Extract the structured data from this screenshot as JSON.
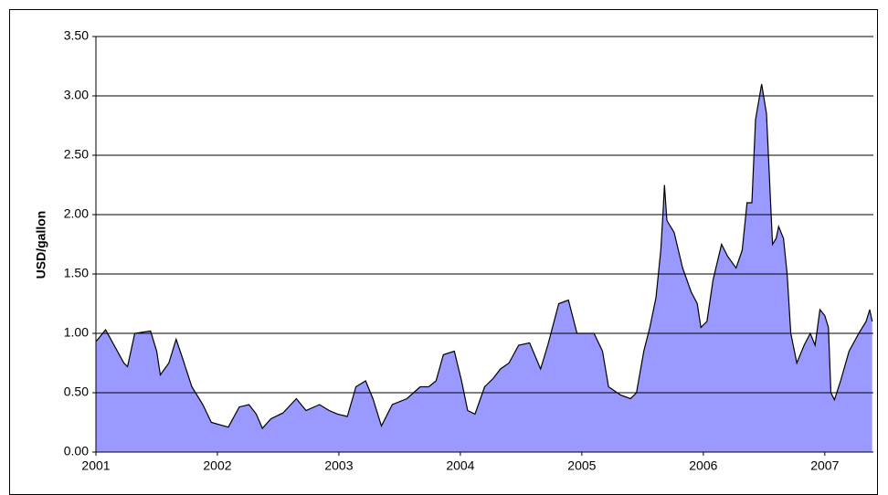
{
  "chart_data": {
    "type": "area",
    "y_label": "USD/gallon",
    "color": "#9999ff",
    "line_color": "#000000",
    "grid": true,
    "x": [
      2001.0,
      2001.08,
      2001.23,
      2001.26,
      2001.32,
      2001.45,
      2001.5,
      2001.53,
      2001.6,
      2001.66,
      2001.71,
      2001.79,
      2001.88,
      2001.95,
      2002.09,
      2002.18,
      2002.26,
      2002.32,
      2002.37,
      2002.44,
      2002.54,
      2002.65,
      2002.73,
      2002.84,
      2002.92,
      2002.99,
      2003.07,
      2003.14,
      2003.22,
      2003.28,
      2003.35,
      2003.44,
      2003.56,
      2003.67,
      2003.74,
      2003.8,
      2003.86,
      2003.95,
      2004.01,
      2004.06,
      2004.12,
      2004.2,
      2004.27,
      2004.33,
      2004.4,
      2004.48,
      2004.57,
      2004.66,
      2004.72,
      2004.81,
      2004.89,
      2004.96,
      2005.0,
      2005.1,
      2005.17,
      2005.22,
      2005.32,
      2005.4,
      2005.45,
      2005.51,
      2005.56,
      2005.61,
      2005.65,
      2005.67,
      2005.68,
      2005.7,
      2005.76,
      2005.83,
      2005.9,
      2005.95,
      2005.98,
      2006.03,
      2006.08,
      2006.15,
      2006.2,
      2006.27,
      2006.32,
      2006.36,
      2006.4,
      2006.43,
      2006.48,
      2006.52,
      2006.57,
      2006.6,
      2006.62,
      2006.66,
      2006.69,
      2006.72,
      2006.77,
      2006.83,
      2006.88,
      2006.92,
      2006.96,
      2007.0,
      2007.03,
      2007.05,
      2007.08,
      2007.13,
      2007.2,
      2007.28,
      2007.34,
      2007.37,
      2007.39
    ],
    "values": [
      0.93,
      1.03,
      0.75,
      0.72,
      1.0,
      1.02,
      0.85,
      0.65,
      0.75,
      0.95,
      0.8,
      0.55,
      0.4,
      0.25,
      0.21,
      0.38,
      0.4,
      0.32,
      0.2,
      0.28,
      0.33,
      0.45,
      0.35,
      0.4,
      0.35,
      0.32,
      0.3,
      0.55,
      0.6,
      0.45,
      0.22,
      0.4,
      0.45,
      0.55,
      0.55,
      0.6,
      0.82,
      0.85,
      0.6,
      0.35,
      0.32,
      0.55,
      0.62,
      0.7,
      0.75,
      0.9,
      0.92,
      0.7,
      0.9,
      1.25,
      1.28,
      1.0,
      1.0,
      1.0,
      0.85,
      0.55,
      0.48,
      0.45,
      0.5,
      0.85,
      1.05,
      1.3,
      1.7,
      2.05,
      2.25,
      1.95,
      1.85,
      1.55,
      1.35,
      1.25,
      1.05,
      1.1,
      1.45,
      1.75,
      1.65,
      1.55,
      1.7,
      2.1,
      2.1,
      2.8,
      3.1,
      2.85,
      1.75,
      1.8,
      1.9,
      1.8,
      1.5,
      1.0,
      0.75,
      0.9,
      1.0,
      0.9,
      1.2,
      1.15,
      1.05,
      0.5,
      0.44,
      0.6,
      0.85,
      1.0,
      1.1,
      1.2,
      1.1
    ],
    "xlim": [
      2001,
      2007.4
    ],
    "xticks": [
      2001,
      2002,
      2003,
      2004,
      2005,
      2006,
      2007
    ],
    "ylim": [
      0,
      3.5
    ],
    "yticks": [
      {
        "value": 0,
        "label": "0.00"
      },
      {
        "value": 0.5,
        "label": "0.50"
      },
      {
        "value": 1,
        "label": "1.00"
      },
      {
        "value": 1.5,
        "label": "1.50"
      },
      {
        "value": 2,
        "label": "2.00"
      },
      {
        "value": 2.5,
        "label": "2.50"
      },
      {
        "value": 3,
        "label": "3.00"
      },
      {
        "value": 3.5,
        "label": "3.50"
      }
    ]
  }
}
